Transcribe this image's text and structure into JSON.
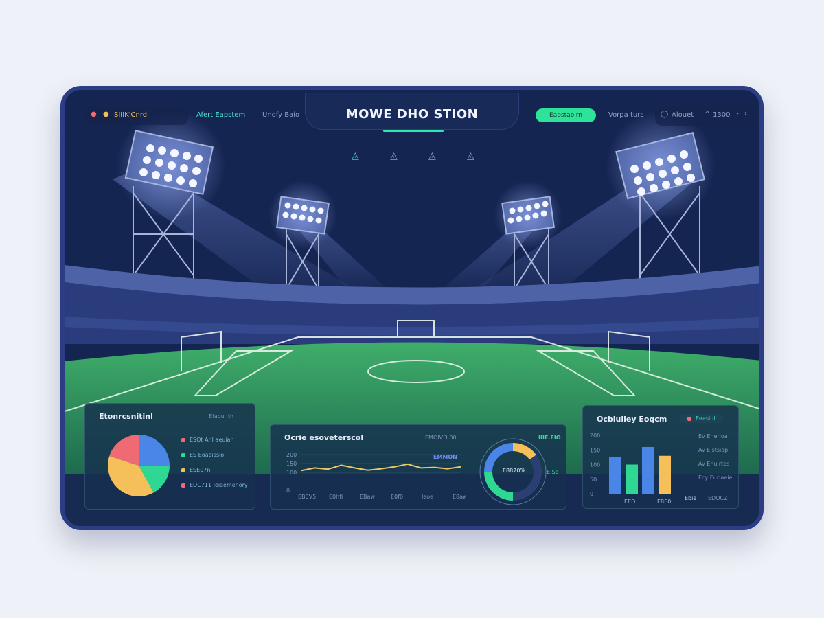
{
  "header": {
    "title": "MOWE DHO STION",
    "left_label": "SIIIK'Cnrd",
    "nav_items": [
      "Afert Eapstem",
      "Unofy Baio"
    ],
    "primary_button": "Eapstaoirn",
    "right_link": "Vorpa turs",
    "status_text": "Alouet",
    "status_value": "1300",
    "icons": [
      "alert-icon",
      "coin-icon",
      "user-icon",
      "chevron-up-icon",
      "chevron-right-icon",
      "arrow-right-icon"
    ],
    "mode_icons": [
      "ball-icon",
      "shirt-icon",
      "boot-icon",
      "whistle-icon"
    ]
  },
  "colors": {
    "accent": "#2ee29a",
    "blue": "#4a86e8",
    "green": "#2ed893",
    "yellow": "#f5bf5a",
    "red": "#f06a73",
    "card": "#13204a",
    "border": "#2c3d86"
  },
  "panels": {
    "pie": {
      "title": "Etonrcsnitinl",
      "badge": "Efaou ,th",
      "legend": [
        "ESOt Anl aeuian",
        "ES Eoaeissio",
        "ESE07n",
        "EDC711 Ieiaemenory"
      ]
    },
    "line": {
      "title": "Ocrie esoveterscol",
      "badge": "EMOIV.3.00",
      "annotation": "EMMON",
      "donut_center": "E8870%",
      "donut_label": "IIIE.EIO",
      "donut_side": "E.So"
    },
    "bar": {
      "title": "Ocbiuiley Eoqcm",
      "badge": "Eeasiul",
      "legend": [
        "Ev Enerioa",
        "Av Eistsiop",
        "Av Enuirtps",
        "Ecy Euriaeie"
      ],
      "footer": [
        "Ebie",
        "EDOCZ"
      ]
    }
  },
  "chart_data": [
    {
      "type": "pie",
      "values": [
        25,
        17,
        38,
        20
      ],
      "colors": [
        "#4a86e8",
        "#2ed893",
        "#f5bf5a",
        "#f06a73"
      ]
    },
    {
      "type": "line",
      "y_ticks": [
        "200",
        "150",
        "100",
        "0"
      ],
      "x_ticks": [
        "EB0V5",
        "E0hfi",
        "EBaw",
        "E0f0",
        "Ieoe",
        "E8aw"
      ],
      "values": [
        115,
        140,
        128,
        165,
        140,
        118,
        132,
        150,
        175,
        140,
        145,
        132,
        150
      ],
      "ylim": [
        0,
        200
      ],
      "color": "#e9c86a",
      "grid": true
    },
    {
      "type": "pie",
      "donut": true,
      "values": [
        15,
        35,
        25,
        25
      ],
      "colors": [
        "#f5bf5a",
        "#2c3f73",
        "#2ed893",
        "#4a86e8"
      ]
    },
    {
      "type": "bar",
      "y_ticks": [
        "200",
        "150",
        "100",
        "50",
        "0"
      ],
      "x_ticks": [
        "EED",
        "E8E0"
      ],
      "values": [
        125,
        100,
        160,
        130
      ],
      "colors": [
        "#4a86e8",
        "#2ed893",
        "#4a86e8",
        "#f5bf5a"
      ],
      "ylim": [
        0,
        200
      ]
    }
  ]
}
